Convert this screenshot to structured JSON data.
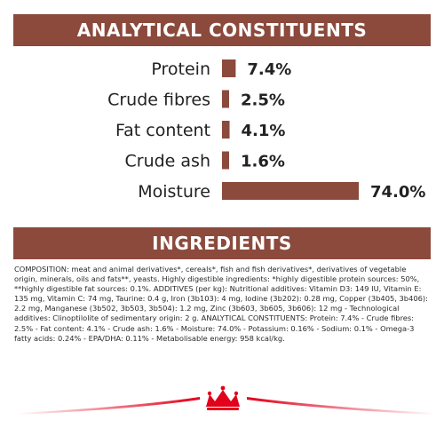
{
  "header": {
    "title": "ANALYTICAL CONSTITUENTS"
  },
  "chart_data": {
    "type": "bar",
    "orientation": "horizontal",
    "title": "ANALYTICAL CONSTITUENTS",
    "categories": [
      "Protein",
      "Crude fibres",
      "Fat content",
      "Crude ash",
      "Moisture"
    ],
    "values": [
      7.4,
      2.5,
      4.1,
      1.6,
      74.0
    ],
    "value_labels": [
      "7.4%",
      "2.5%",
      "4.1%",
      "1.6%",
      "74.0%"
    ],
    "unit": "%",
    "bar_color": "#8b4a3c"
  },
  "ingredients": {
    "title": "INGREDIENTS",
    "composition": "COMPOSITION: meat and animal derivatives*, cereals*, fish and fish derivatives*, derivatives of vegetable origin, minerals, oils and fats**, yeasts. Highly digestible ingredients: *highly digestible protein sources: 50%, **highly digestible fat sources: 0.1%. ADDITIVES (per kg): Nutritional additives: Vitamin D3: 149 IU, Vitamin E: 135 mg, Vitamin C: 74 mg, Taurine: 0.4 g, Iron (3b103): 4 mg, Iodine (3b202): 0.28 mg, Copper (3b405, 3b406): 2.2 mg, Manganese (3b502, 3b503, 3b504): 1.2 mg, Zinc (3b603, 3b605, 3b606): 12 mg - Technological additives: Clinoptilolite of sedimentary origin: 2 g. ANALYTICAL CONSTITUENTS: Protein: 7.4% - Crude fibres: 2.5% - Fat content: 4.1% - Crude ash: 1.6% - Moisture: 74.0% - Potassium: 0.16% - Sodium: 0.1% - Omega-3 fatty acids: 0.24% - EPA/DHA: 0.11% - Metabolisable energy: 958 kcal/kg."
  },
  "footer": {
    "logo_icon": "crown-icon",
    "accent_color": "#e2001a"
  }
}
